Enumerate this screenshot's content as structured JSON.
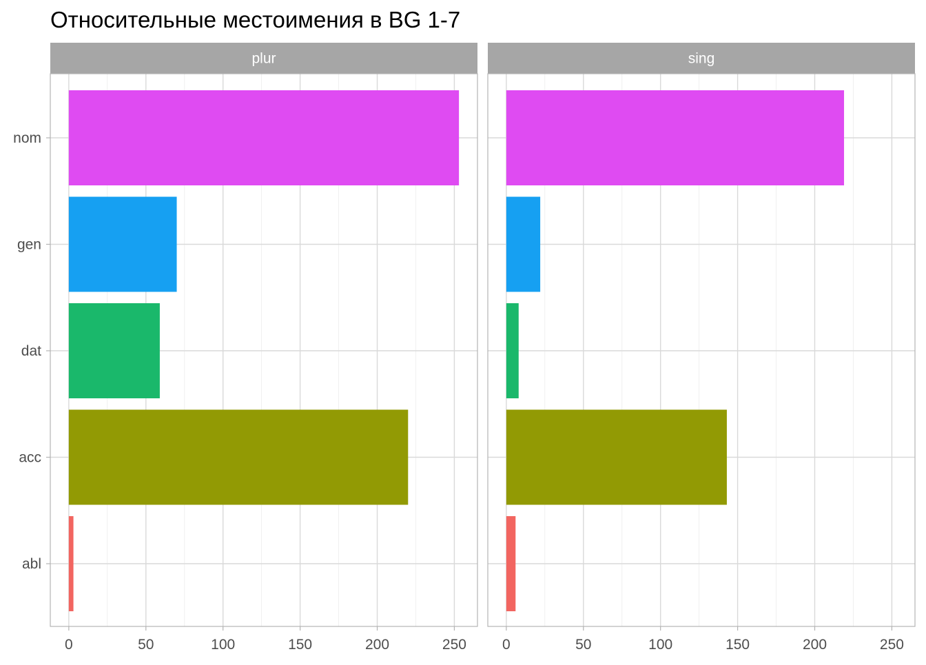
{
  "chart_data": {
    "type": "bar",
    "orientation": "horizontal",
    "title": "Относительные местоимения в BG 1-7",
    "xlabel": "",
    "ylabel": "",
    "categories": [
      "nom",
      "gen",
      "dat",
      "acc",
      "abl"
    ],
    "colors": {
      "nom": "#DF4BF2",
      "gen": "#16A0F2",
      "dat": "#1AB86B",
      "acc": "#929A04",
      "abl": "#F26560"
    },
    "xlim": [
      -12,
      265
    ],
    "x_ticks": [
      0,
      50,
      100,
      150,
      200,
      250
    ],
    "grid": true,
    "legend": "none",
    "panels": [
      {
        "strip": "plur",
        "values": [
          253,
          70,
          59,
          220,
          3
        ]
      },
      {
        "strip": "sing",
        "values": [
          219,
          22,
          8,
          143,
          6
        ]
      }
    ]
  }
}
